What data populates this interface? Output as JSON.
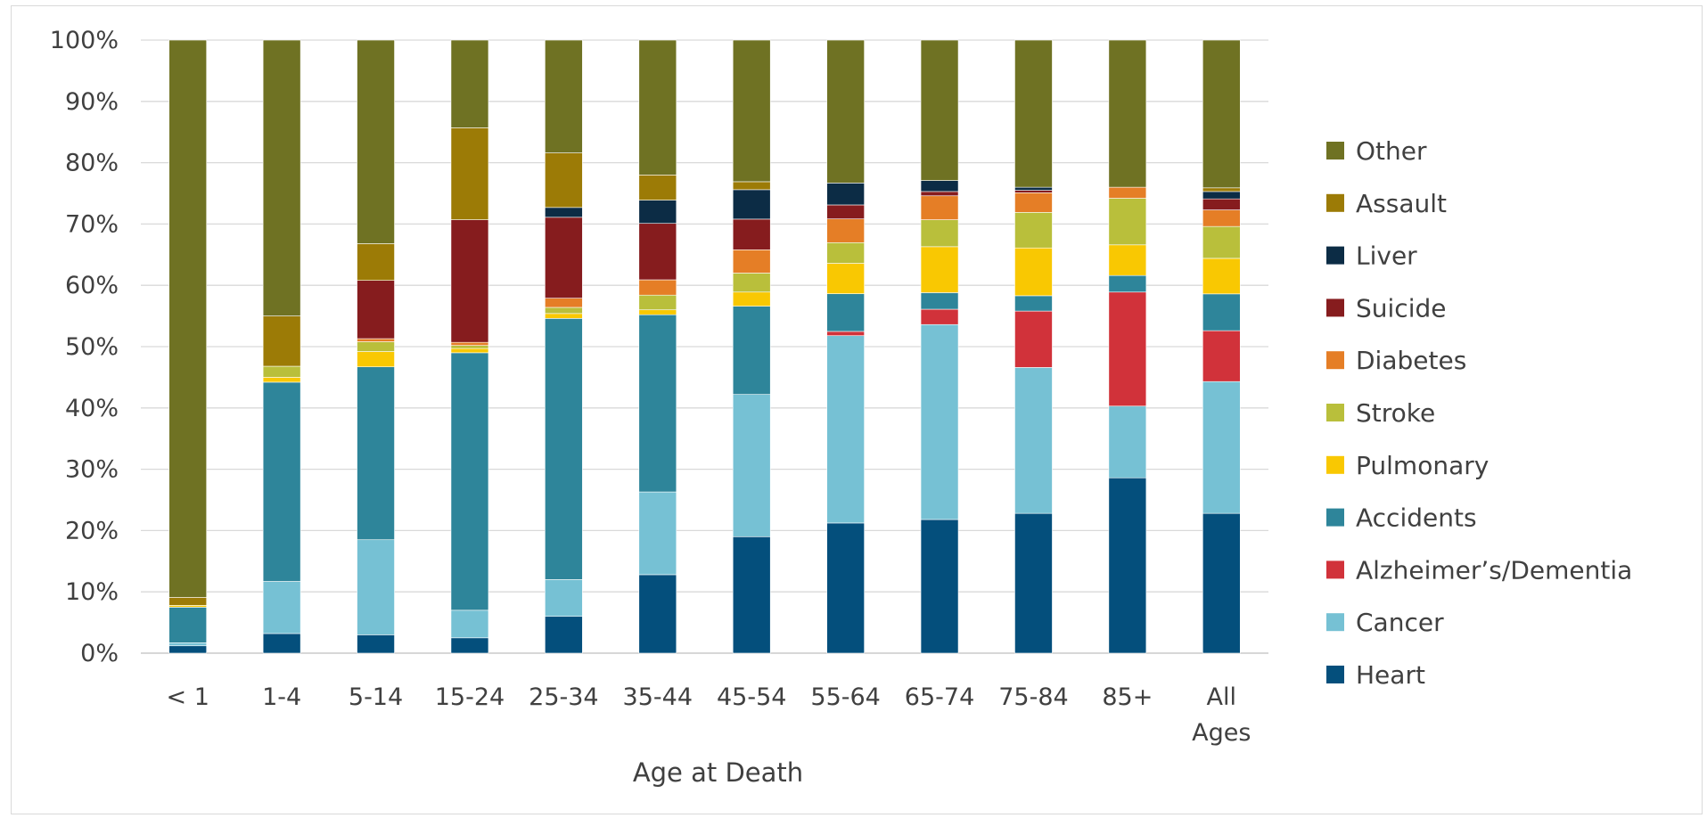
{
  "chart_data": {
    "type": "bar",
    "stacked": true,
    "percent": true,
    "title": "",
    "xlabel": "Age at Death",
    "ylabel": "",
    "ylim": [
      0,
      100
    ],
    "y_ticks": [
      "0%",
      "10%",
      "20%",
      "30%",
      "40%",
      "50%",
      "60%",
      "70%",
      "80%",
      "90%",
      "100%"
    ],
    "grid": "horizontal",
    "legend_position": "right",
    "categories": [
      "< 1",
      "1-4",
      "5-14",
      "15-24",
      "25-34",
      "35-44",
      "45-54",
      "55-64",
      "65-74",
      "75-84",
      "85+",
      "All Ages"
    ],
    "category_lines": [
      [
        "< 1"
      ],
      [
        "1-4"
      ],
      [
        "5-14"
      ],
      [
        "15-24"
      ],
      [
        "25-34"
      ],
      [
        "35-44"
      ],
      [
        "45-54"
      ],
      [
        "55-64"
      ],
      [
        "65-74"
      ],
      [
        "75-84"
      ],
      [
        "85+"
      ],
      [
        "All",
        "Ages"
      ]
    ],
    "series": [
      {
        "name": "Heart",
        "color": "#044f7c",
        "values": [
          1.2,
          3.2,
          3.0,
          2.5,
          6.0,
          12.8,
          19.0,
          21.4,
          21.8,
          22.8,
          28.6,
          22.8
        ]
      },
      {
        "name": "Cancer",
        "color": "#76c1d4",
        "values": [
          0.5,
          8.5,
          15.5,
          4.5,
          6.0,
          13.5,
          23.2,
          30.8,
          31.8,
          23.8,
          11.7,
          21.5
        ]
      },
      {
        "name": "Alzheimer’s/Dementia",
        "color": "#d1323a",
        "values": [
          0,
          0,
          0,
          0,
          0,
          0,
          0,
          0.7,
          2.5,
          9.2,
          18.6,
          8.3
        ]
      },
      {
        "name": "Accidents",
        "color": "#2e859a",
        "values": [
          5.8,
          32.5,
          28.2,
          42.0,
          42.6,
          28.9,
          14.4,
          6.2,
          2.7,
          2.5,
          2.7,
          6.0
        ]
      },
      {
        "name": "Pulmonary",
        "color": "#f9c802",
        "values": [
          0.3,
          0.8,
          2.5,
          0.7,
          0.8,
          0.8,
          2.3,
          5.0,
          7.5,
          7.8,
          5.0,
          5.8
        ]
      },
      {
        "name": "Stroke",
        "color": "#b9bf3b",
        "values": [
          0,
          1.8,
          1.6,
          0.5,
          1.0,
          2.4,
          3.1,
          3.4,
          4.4,
          5.8,
          7.6,
          5.2
        ]
      },
      {
        "name": "Diabetes",
        "color": "#e57e26",
        "values": [
          0,
          0,
          0.5,
          0.5,
          1.5,
          2.5,
          3.8,
          3.9,
          3.9,
          3.2,
          1.8,
          2.7
        ]
      },
      {
        "name": "Suicide",
        "color": "#861c1e",
        "values": [
          0,
          0,
          9.5,
          20.0,
          13.2,
          9.2,
          5.0,
          2.3,
          0.7,
          0.4,
          0,
          1.8
        ]
      },
      {
        "name": "Liver",
        "color": "#0c2c45",
        "values": [
          0,
          0,
          0,
          0,
          1.6,
          3.8,
          4.8,
          3.6,
          1.8,
          0.5,
          0,
          1.2
        ]
      },
      {
        "name": "Assault",
        "color": "#9c7b06",
        "values": [
          1.3,
          8.2,
          6.0,
          15.0,
          8.9,
          4.1,
          1.3,
          0,
          0,
          0,
          0,
          0.6
        ]
      },
      {
        "name": "Other",
        "color": "#6f7223",
        "values": [
          90.9,
          45.0,
          33.2,
          14.3,
          18.4,
          22.0,
          23.1,
          23.5,
          22.9,
          24.0,
          24.0,
          24.1
        ]
      }
    ]
  }
}
